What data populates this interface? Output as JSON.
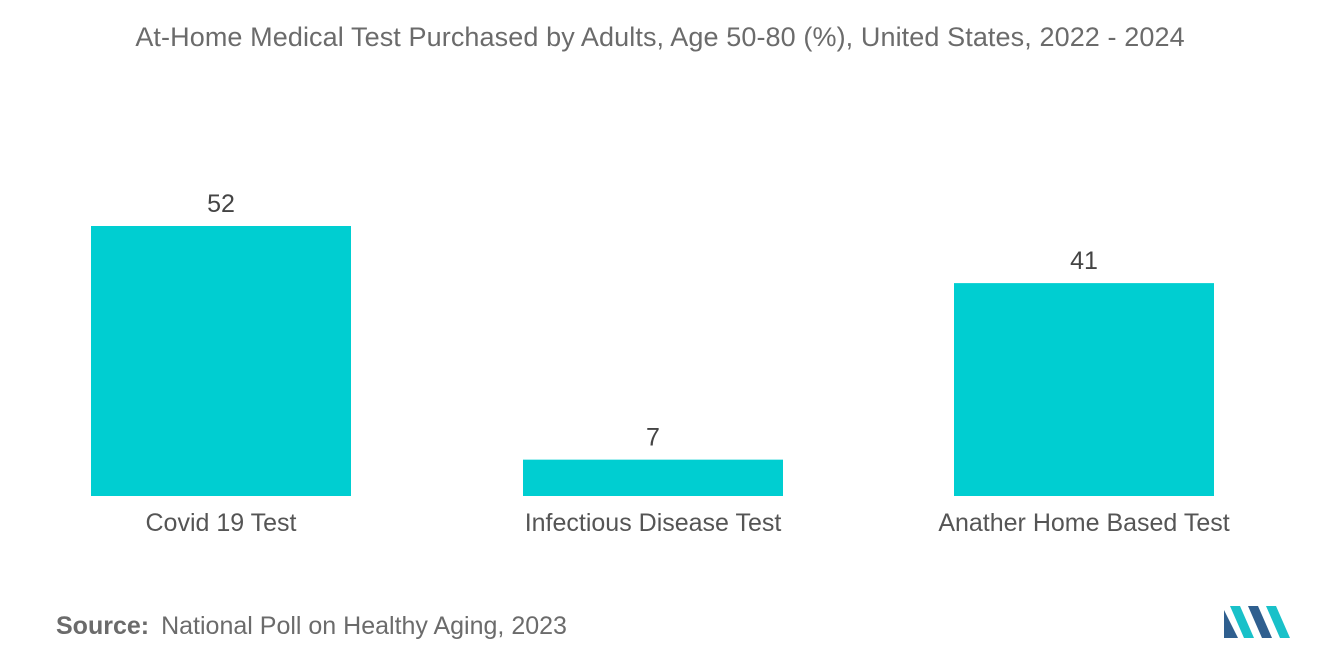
{
  "colors": {
    "bar": "#00ced1",
    "title_text": "#6b6b6b",
    "logo_dark": "#2f5f8f",
    "logo_light": "#19c1c9"
  },
  "chart_data": {
    "type": "bar",
    "title": "At-Home Medical Test Purchased by Adults, Age 50-80 (%), United States, 2022 - 2024",
    "categories": [
      "Covid 19 Test",
      "Infectious Disease Test",
      "Anather Home Based Test"
    ],
    "values": [
      52,
      7,
      41
    ],
    "data_labels": [
      "52",
      "7",
      "41"
    ],
    "xlabel": "",
    "ylabel": "",
    "ylim": [
      0,
      52
    ],
    "grid": false,
    "legend": "none"
  },
  "source": {
    "key": "Source:",
    "text": "National Poll on Healthy Aging, 2023"
  },
  "logo": {
    "icon": "mordor-intelligence-logo-icon"
  }
}
